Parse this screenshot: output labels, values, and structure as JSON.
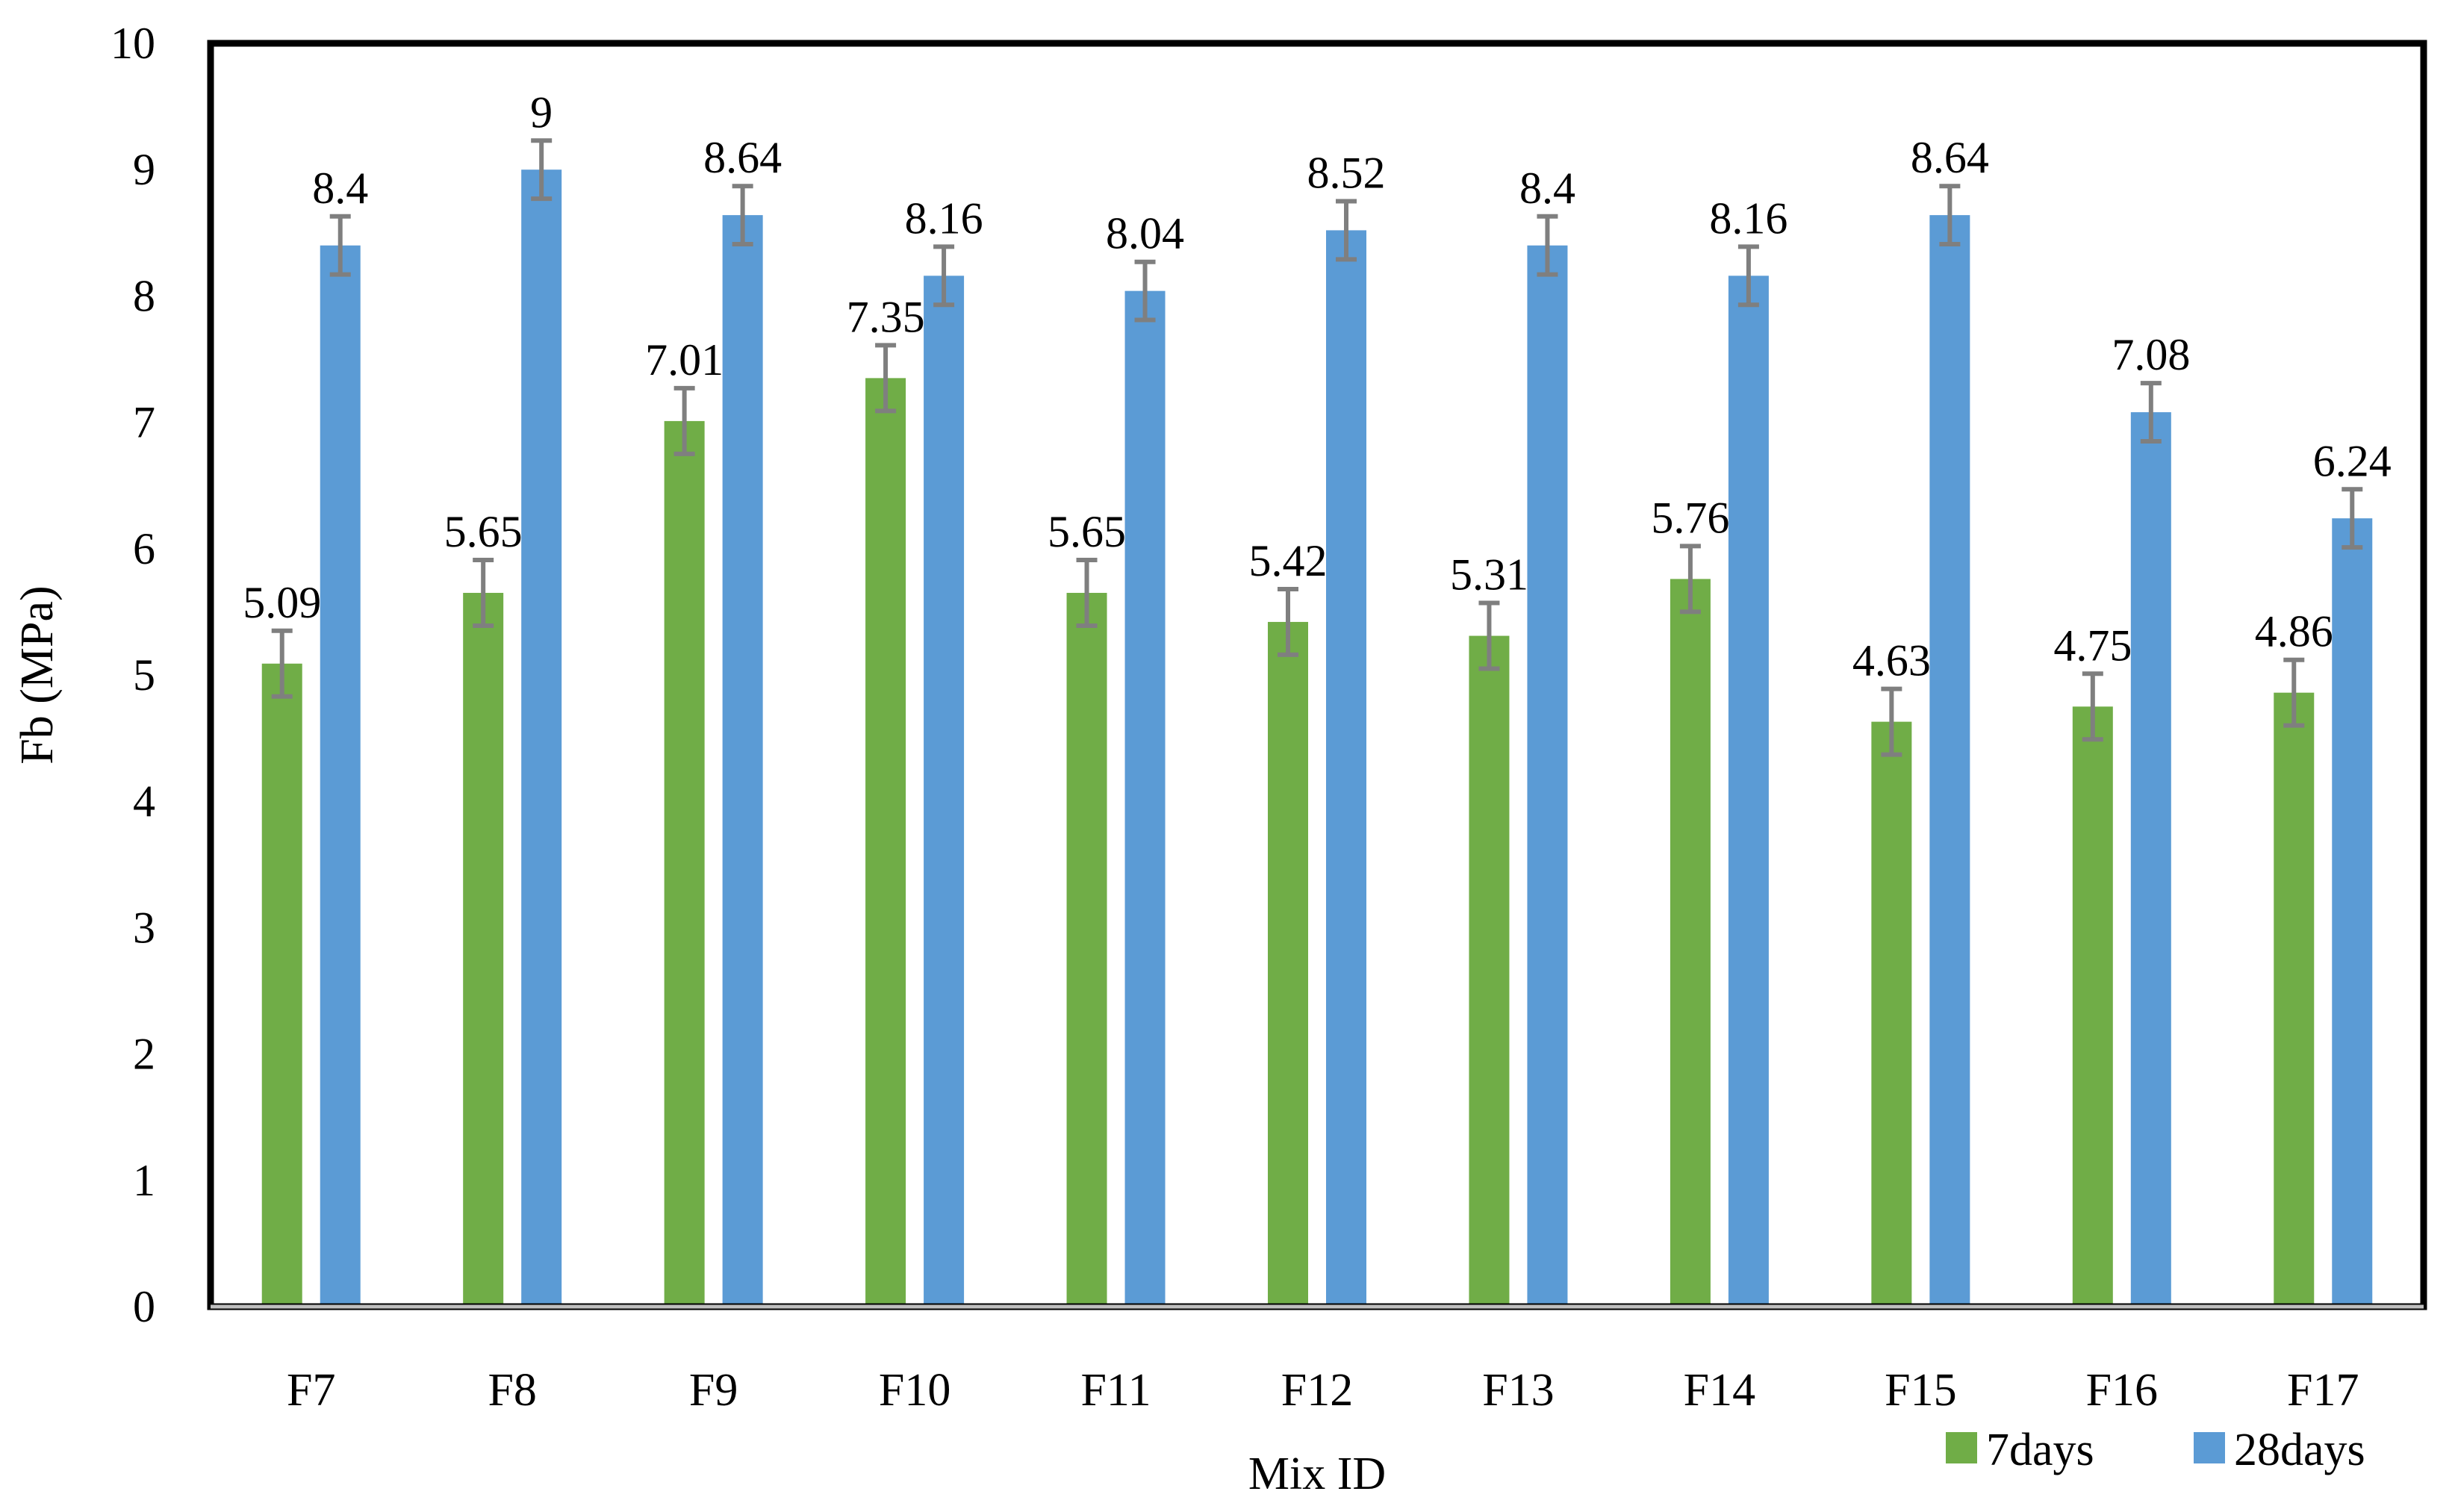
{
  "chart_data": {
    "type": "bar",
    "title": "",
    "xlabel": "Mix ID",
    "ylabel": "Fb (MPa)",
    "ylim": [
      0,
      10
    ],
    "yticks": [
      "0",
      "1",
      "2",
      "3",
      "4",
      "5",
      "6",
      "7",
      "8",
      "9",
      "10"
    ],
    "categories": [
      "F7",
      "F8",
      "F9",
      "F10",
      "F11",
      "F12",
      "F13",
      "F14",
      "F15",
      "F16",
      "F17"
    ],
    "series": [
      {
        "name": "7days",
        "color": "#70ad47",
        "values": [
          5.09,
          5.65,
          7.01,
          7.35,
          5.65,
          5.42,
          5.31,
          5.76,
          4.63,
          4.75,
          4.86
        ],
        "labels": [
          "5.09",
          "5.65",
          "7.01",
          "7.35",
          "5.65",
          "5.42",
          "5.31",
          "5.76",
          "4.63",
          "4.75",
          "4.86"
        ],
        "error": [
          0.26,
          0.26,
          0.26,
          0.26,
          0.26,
          0.26,
          0.26,
          0.26,
          0.26,
          0.26,
          0.26
        ]
      },
      {
        "name": "28days",
        "color": "#5b9bd5",
        "values": [
          8.4,
          9,
          8.64,
          8.16,
          8.04,
          8.52,
          8.4,
          8.16,
          8.64,
          7.08,
          6.24
        ],
        "labels": [
          "8.4",
          "9",
          "8.64",
          "8.16",
          "8.04",
          "8.52",
          "8.4",
          "8.16",
          "8.64",
          "7.08",
          "6.24"
        ],
        "error": [
          0.23,
          0.23,
          0.23,
          0.23,
          0.23,
          0.23,
          0.23,
          0.23,
          0.23,
          0.23,
          0.23
        ]
      }
    ],
    "error_bar_color": "#7f7f7f",
    "legend_position": "bottom-right",
    "grid": false
  }
}
